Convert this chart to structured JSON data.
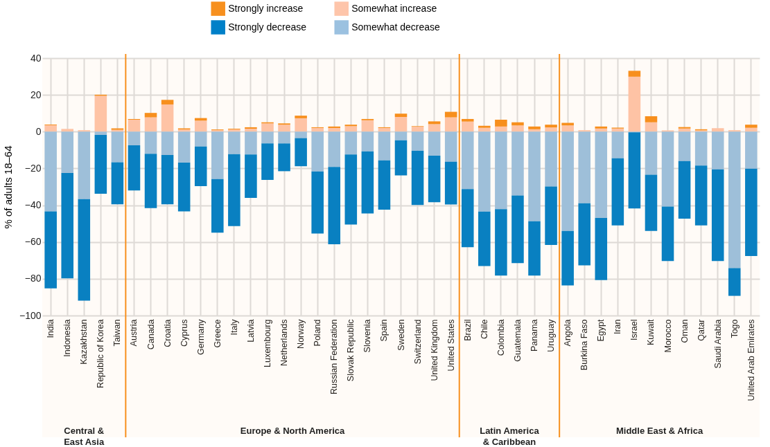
{
  "chart_data": {
    "type": "bar",
    "stacked": true,
    "ylabel": "% of adults 18–64",
    "categories": [
      "India",
      "Indonesia",
      "Kazakhstan",
      "Republic of Korea",
      "Taiwan",
      "Austria",
      "Canada",
      "Croatia",
      "Cyprus",
      "Germany",
      "Greece",
      "Italy",
      "Latvia",
      "Luxembourg",
      "Netherlands",
      "Norway",
      "Poland",
      "Russian Federation",
      "Slovak Republic",
      "Slovenia",
      "Spain",
      "Sweden",
      "Switzerland",
      "United Kingdom",
      "United States",
      "Brazil",
      "Chile",
      "Colombia",
      "Guatemala",
      "Panama",
      "Uruguay",
      "Angola",
      "Burkina Faso",
      "Egypt",
      "Iran",
      "Israel",
      "Kuwait",
      "Morocco",
      "Oman",
      "Qatar",
      "Saudi Arabia",
      "Togo",
      "United Arab Emirates"
    ],
    "series": [
      {
        "name": "Somewhat increase",
        "color": "#fec5aa",
        "values": [
          3.5,
          1.5,
          0.8,
          19.5,
          1.0,
          6.5,
          7.8,
          14.8,
          1.2,
          6.0,
          0.8,
          1.2,
          1.6,
          4.5,
          3.8,
          7.3,
          2.0,
          2.0,
          3.0,
          6.2,
          2.0,
          8.0,
          2.7,
          4.1,
          7.8,
          5.5,
          2.1,
          2.8,
          3.4,
          1.3,
          2.3,
          3.4,
          0.8,
          1.7,
          1.7,
          29.9,
          5.1,
          0.7,
          1.7,
          0.7,
          1.9,
          0.8,
          2.1
        ]
      },
      {
        "name": "Strongly increase",
        "color": "#f7901e",
        "values": [
          0.4,
          0,
          0,
          0.6,
          0.8,
          0.4,
          2.4,
          2.5,
          0.6,
          1.4,
          0.4,
          0.4,
          0.8,
          0.6,
          0.7,
          1.4,
          0.4,
          0.8,
          0.8,
          0.7,
          0.4,
          1.8,
          0.3,
          1.5,
          3.0,
          1.4,
          1.1,
          3.7,
          1.7,
          1.5,
          1.5,
          1.4,
          0,
          1.1,
          0.5,
          3.2,
          3.3,
          0,
          0.8,
          0.6,
          0,
          0,
          1.7
        ]
      },
      {
        "name": "Somewhat decrease",
        "color": "#9bc1e0",
        "values": [
          -43.4,
          -22.5,
          -36.7,
          -1.8,
          -16.6,
          -7.4,
          -12.0,
          -12.7,
          -16.8,
          -8.1,
          -25.8,
          -12.2,
          -12.4,
          -6.4,
          -6.4,
          -3.5,
          -21.6,
          -19.2,
          -12.4,
          -10.7,
          -15.6,
          -4.7,
          -10.3,
          -13.1,
          -16.4,
          -31.2,
          -43.5,
          -42.1,
          -34.7,
          -48.7,
          -29.8,
          -54.0,
          -38.9,
          -46.9,
          -14.5,
          -0.4,
          -23.4,
          -40.7,
          -16.0,
          -18.4,
          -20.5,
          -74.2,
          -20.1
        ]
      },
      {
        "name": "Strongly decrease",
        "color": "#0080c8",
        "values": [
          -41.8,
          -57.3,
          -55.2,
          -32.0,
          -22.9,
          -24.6,
          -29.6,
          -26.8,
          -26.6,
          -21.5,
          -29.1,
          -39.2,
          -23.6,
          -19.8,
          -15.1,
          -15.3,
          -33.8,
          -42.0,
          -38.1,
          -33.8,
          -26.8,
          -19.1,
          -29.6,
          -25.3,
          -23.2,
          -31.6,
          -29.6,
          -36.2,
          -36.8,
          -29.6,
          -31.8,
          -29.6,
          -33.8,
          -33.8,
          -36.5,
          -41.4,
          -30.6,
          -29.7,
          -31.3,
          -32.6,
          -49.9,
          -15.1,
          -47.5
        ]
      }
    ],
    "ylim": [
      -100,
      40
    ],
    "yticks": [
      -100,
      -80,
      -60,
      -40,
      -20,
      0,
      20,
      40
    ],
    "grid": true,
    "legend": "top",
    "bands": [
      {
        "axis": "x",
        "from": "India",
        "to": "Taiwan",
        "label": "Central & East Asia",
        "color": "#f7901e"
      },
      {
        "axis": "x",
        "from": "Austria",
        "to": "United States",
        "label": "Europe & North America",
        "color": "#f7901e"
      },
      {
        "axis": "x",
        "from": "Brazil",
        "to": "Uruguay",
        "label": "Latin America & Caribbean",
        "color": "#f7901e"
      },
      {
        "axis": "x",
        "from": "Angola",
        "to": "United Arab Emirates",
        "label": "Middle East & Africa",
        "color": "#f7901e"
      }
    ]
  }
}
